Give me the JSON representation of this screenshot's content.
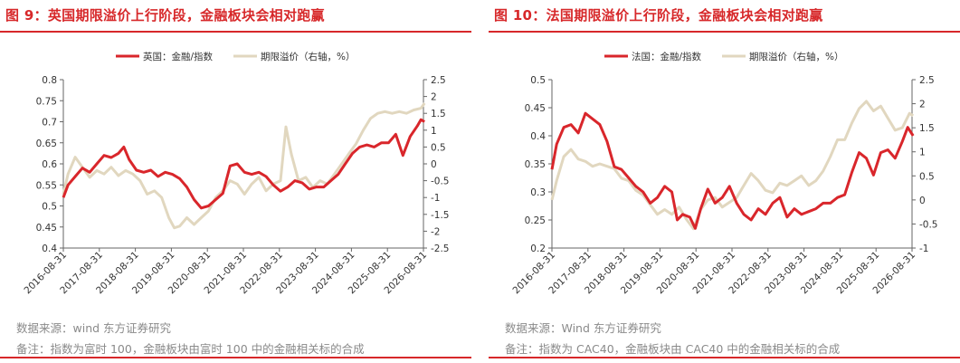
{
  "colors": {
    "accent": "#d7282a",
    "series_primary": "#d9262b",
    "series_secondary": "#e1d7bf",
    "note_text": "#8a8a8a"
  },
  "charts": [
    {
      "title": "图 9：英国期限溢价上行阶段，金融板块会相对跑赢",
      "source": "数据来源：wind 东方证券研究",
      "note": "备注：指数为富时 100，金融板块由富时 100 中的金融相关标的合成",
      "chart_data": {
        "type": "line",
        "legend_position": "top-center",
        "grid": false,
        "x_ticks": [
          "2016-08-31",
          "2017-08-31",
          "2018-08-31",
          "2019-08-31",
          "2020-08-31",
          "2021-08-31",
          "2022-08-31",
          "2023-08-31",
          "2024-08-31",
          "2025-08-31",
          "2026-08-31"
        ],
        "y_left": {
          "min": 0.4,
          "max": 0.8,
          "step": 0.05,
          "ticks": [
            "0.4",
            "0.45",
            "0.5",
            "0.55",
            "0.6",
            "0.65",
            "0.7",
            "0.75",
            "0.8"
          ]
        },
        "y_right": {
          "min": -2.5,
          "max": 2.5,
          "step": 0.5,
          "ticks": [
            "-2.5",
            "-2",
            "-1.5",
            "-1",
            "-0.5",
            "0",
            "0.5",
            "1",
            "1.5",
            "2",
            "2.5"
          ]
        },
        "series": [
          {
            "name": "英国：金融/指数",
            "axis": "left",
            "points": [
              [
                2016.67,
                0.52
              ],
              [
                2016.8,
                0.55
              ],
              [
                2017.0,
                0.57
              ],
              [
                2017.2,
                0.59
              ],
              [
                2017.4,
                0.58
              ],
              [
                2017.6,
                0.6
              ],
              [
                2017.8,
                0.62
              ],
              [
                2018.0,
                0.615
              ],
              [
                2018.2,
                0.625
              ],
              [
                2018.35,
                0.64
              ],
              [
                2018.5,
                0.61
              ],
              [
                2018.7,
                0.585
              ],
              [
                2018.9,
                0.58
              ],
              [
                2019.1,
                0.585
              ],
              [
                2019.3,
                0.57
              ],
              [
                2019.5,
                0.58
              ],
              [
                2019.7,
                0.575
              ],
              [
                2019.9,
                0.565
              ],
              [
                2020.1,
                0.545
              ],
              [
                2020.3,
                0.515
              ],
              [
                2020.5,
                0.495
              ],
              [
                2020.7,
                0.5
              ],
              [
                2020.9,
                0.515
              ],
              [
                2021.1,
                0.53
              ],
              [
                2021.3,
                0.595
              ],
              [
                2021.5,
                0.6
              ],
              [
                2021.7,
                0.58
              ],
              [
                2021.9,
                0.575
              ],
              [
                2022.1,
                0.58
              ],
              [
                2022.3,
                0.57
              ],
              [
                2022.5,
                0.55
              ],
              [
                2022.7,
                0.535
              ],
              [
                2022.9,
                0.545
              ],
              [
                2023.1,
                0.56
              ],
              [
                2023.3,
                0.555
              ],
              [
                2023.5,
                0.54
              ],
              [
                2023.7,
                0.545
              ],
              [
                2023.9,
                0.545
              ],
              [
                2024.1,
                0.56
              ],
              [
                2024.3,
                0.575
              ],
              [
                2024.5,
                0.6
              ],
              [
                2024.7,
                0.625
              ],
              [
                2024.9,
                0.64
              ],
              [
                2025.1,
                0.645
              ],
              [
                2025.3,
                0.64
              ],
              [
                2025.5,
                0.65
              ],
              [
                2025.7,
                0.65
              ],
              [
                2025.9,
                0.67
              ],
              [
                2026.1,
                0.62
              ],
              [
                2026.3,
                0.665
              ],
              [
                2026.5,
                0.69
              ],
              [
                2026.6,
                0.705
              ],
              [
                2026.7,
                0.7
              ]
            ]
          },
          {
            "name": "期限溢价（右轴，%）",
            "axis": "right",
            "points": [
              [
                2016.67,
                -0.9
              ],
              [
                2016.8,
                -0.3
              ],
              [
                2017.0,
                0.2
              ],
              [
                2017.2,
                -0.1
              ],
              [
                2017.4,
                -0.4
              ],
              [
                2017.6,
                -0.2
              ],
              [
                2017.8,
                -0.3
              ],
              [
                2018.0,
                -0.1
              ],
              [
                2018.2,
                -0.35
              ],
              [
                2018.4,
                -0.2
              ],
              [
                2018.6,
                -0.3
              ],
              [
                2018.8,
                -0.5
              ],
              [
                2019.0,
                -0.9
              ],
              [
                2019.2,
                -0.8
              ],
              [
                2019.4,
                -1.0
              ],
              [
                2019.6,
                -1.6
              ],
              [
                2019.75,
                -1.9
              ],
              [
                2019.9,
                -1.85
              ],
              [
                2020.1,
                -1.6
              ],
              [
                2020.3,
                -1.8
              ],
              [
                2020.5,
                -1.6
              ],
              [
                2020.7,
                -1.4
              ],
              [
                2020.9,
                -1.0
              ],
              [
                2021.1,
                -0.8
              ],
              [
                2021.3,
                -0.5
              ],
              [
                2021.5,
                -0.6
              ],
              [
                2021.7,
                -0.9
              ],
              [
                2021.9,
                -0.6
              ],
              [
                2022.1,
                -0.4
              ],
              [
                2022.3,
                -0.8
              ],
              [
                2022.5,
                -0.6
              ],
              [
                2022.7,
                -0.5
              ],
              [
                2022.85,
                1.1
              ],
              [
                2023.0,
                0.3
              ],
              [
                2023.2,
                -0.5
              ],
              [
                2023.4,
                -0.4
              ],
              [
                2023.6,
                -0.7
              ],
              [
                2023.8,
                -0.5
              ],
              [
                2024.0,
                -0.6
              ],
              [
                2024.2,
                -0.3
              ],
              [
                2024.4,
                0.0
              ],
              [
                2024.6,
                0.3
              ],
              [
                2024.8,
                0.6
              ],
              [
                2025.0,
                1.0
              ],
              [
                2025.2,
                1.35
              ],
              [
                2025.4,
                1.5
              ],
              [
                2025.6,
                1.55
              ],
              [
                2025.8,
                1.5
              ],
              [
                2026.0,
                1.55
              ],
              [
                2026.2,
                1.5
              ],
              [
                2026.4,
                1.6
              ],
              [
                2026.6,
                1.65
              ],
              [
                2026.7,
                1.8
              ]
            ]
          }
        ]
      }
    },
    {
      "title": "图 10：法国期限溢价上行阶段，金融板块会相对跑赢",
      "source": "数据来源：Wind 东方证券研究",
      "note": "备注：指数为 CAC40，金融板块由 CAC40 中的金融相关标的合成",
      "chart_data": {
        "type": "line",
        "legend_position": "top-center",
        "grid": false,
        "x_ticks": [
          "2016-08-31",
          "2017-08-31",
          "2018-08-31",
          "2019-08-31",
          "2020-08-31",
          "2021-08-31",
          "2022-08-31",
          "2023-08-31",
          "2024-08-31",
          "2025-08-31",
          "2026-08-31"
        ],
        "y_left": {
          "min": 0.2,
          "max": 0.5,
          "step": 0.05,
          "ticks": [
            "0.2",
            "0.25",
            "0.3",
            "0.35",
            "0.4",
            "0.45",
            "0.5"
          ]
        },
        "y_right": {
          "min": -1,
          "max": 2.5,
          "step": 0.5,
          "ticks": [
            "-1",
            "-0.5",
            "0",
            "0.5",
            "1",
            "1.5",
            "2",
            "2.5"
          ]
        },
        "series": [
          {
            "name": "法国：金融/指数",
            "axis": "left",
            "points": [
              [
                2016.67,
                0.34
              ],
              [
                2016.8,
                0.385
              ],
              [
                2017.0,
                0.415
              ],
              [
                2017.2,
                0.42
              ],
              [
                2017.4,
                0.405
              ],
              [
                2017.6,
                0.44
              ],
              [
                2017.8,
                0.43
              ],
              [
                2018.0,
                0.42
              ],
              [
                2018.2,
                0.39
              ],
              [
                2018.4,
                0.345
              ],
              [
                2018.6,
                0.34
              ],
              [
                2018.8,
                0.325
              ],
              [
                2019.0,
                0.31
              ],
              [
                2019.2,
                0.3
              ],
              [
                2019.4,
                0.28
              ],
              [
                2019.6,
                0.29
              ],
              [
                2019.8,
                0.31
              ],
              [
                2020.0,
                0.3
              ],
              [
                2020.15,
                0.25
              ],
              [
                2020.3,
                0.26
              ],
              [
                2020.5,
                0.255
              ],
              [
                2020.65,
                0.235
              ],
              [
                2020.8,
                0.27
              ],
              [
                2021.0,
                0.305
              ],
              [
                2021.2,
                0.28
              ],
              [
                2021.4,
                0.29
              ],
              [
                2021.6,
                0.31
              ],
              [
                2021.8,
                0.28
              ],
              [
                2022.0,
                0.26
              ],
              [
                2022.2,
                0.25
              ],
              [
                2022.4,
                0.27
              ],
              [
                2022.6,
                0.26
              ],
              [
                2022.8,
                0.28
              ],
              [
                2023.0,
                0.29
              ],
              [
                2023.2,
                0.255
              ],
              [
                2023.4,
                0.27
              ],
              [
                2023.6,
                0.26
              ],
              [
                2023.8,
                0.265
              ],
              [
                2024.0,
                0.27
              ],
              [
                2024.2,
                0.28
              ],
              [
                2024.4,
                0.28
              ],
              [
                2024.6,
                0.29
              ],
              [
                2024.8,
                0.295
              ],
              [
                2025.0,
                0.335
              ],
              [
                2025.2,
                0.37
              ],
              [
                2025.4,
                0.36
              ],
              [
                2025.6,
                0.33
              ],
              [
                2025.8,
                0.37
              ],
              [
                2026.0,
                0.375
              ],
              [
                2026.2,
                0.36
              ],
              [
                2026.4,
                0.39
              ],
              [
                2026.55,
                0.415
              ],
              [
                2026.7,
                0.4
              ]
            ]
          },
          {
            "name": "期限溢价（右轴，%）",
            "axis": "right",
            "points": [
              [
                2016.67,
                0.0
              ],
              [
                2016.8,
                0.4
              ],
              [
                2017.0,
                0.9
              ],
              [
                2017.2,
                1.05
              ],
              [
                2017.4,
                0.85
              ],
              [
                2017.6,
                0.8
              ],
              [
                2017.8,
                0.7
              ],
              [
                2018.0,
                0.75
              ],
              [
                2018.2,
                0.7
              ],
              [
                2018.4,
                0.65
              ],
              [
                2018.6,
                0.45
              ],
              [
                2018.8,
                0.4
              ],
              [
                2019.0,
                0.2
              ],
              [
                2019.2,
                0.1
              ],
              [
                2019.4,
                -0.1
              ],
              [
                2019.6,
                -0.3
              ],
              [
                2019.8,
                -0.2
              ],
              [
                2020.0,
                -0.3
              ],
              [
                2020.2,
                -0.15
              ],
              [
                2020.4,
                -0.4
              ],
              [
                2020.6,
                -0.6
              ],
              [
                2020.8,
                -0.2
              ],
              [
                2021.0,
                0.0
              ],
              [
                2021.2,
                0.05
              ],
              [
                2021.4,
                -0.15
              ],
              [
                2021.6,
                -0.05
              ],
              [
                2021.8,
                0.05
              ],
              [
                2022.0,
                0.3
              ],
              [
                2022.2,
                0.55
              ],
              [
                2022.4,
                0.4
              ],
              [
                2022.6,
                0.2
              ],
              [
                2022.8,
                0.15
              ],
              [
                2023.0,
                0.35
              ],
              [
                2023.2,
                0.3
              ],
              [
                2023.4,
                0.4
              ],
              [
                2023.6,
                0.5
              ],
              [
                2023.8,
                0.3
              ],
              [
                2024.0,
                0.4
              ],
              [
                2024.2,
                0.6
              ],
              [
                2024.4,
                0.9
              ],
              [
                2024.6,
                1.25
              ],
              [
                2024.8,
                1.25
              ],
              [
                2025.0,
                1.6
              ],
              [
                2025.2,
                1.9
              ],
              [
                2025.4,
                2.05
              ],
              [
                2025.6,
                1.85
              ],
              [
                2025.8,
                1.95
              ],
              [
                2026.0,
                1.7
              ],
              [
                2026.2,
                1.45
              ],
              [
                2026.4,
                1.5
              ],
              [
                2026.6,
                1.8
              ],
              [
                2026.7,
                1.75
              ]
            ]
          }
        ]
      }
    }
  ]
}
